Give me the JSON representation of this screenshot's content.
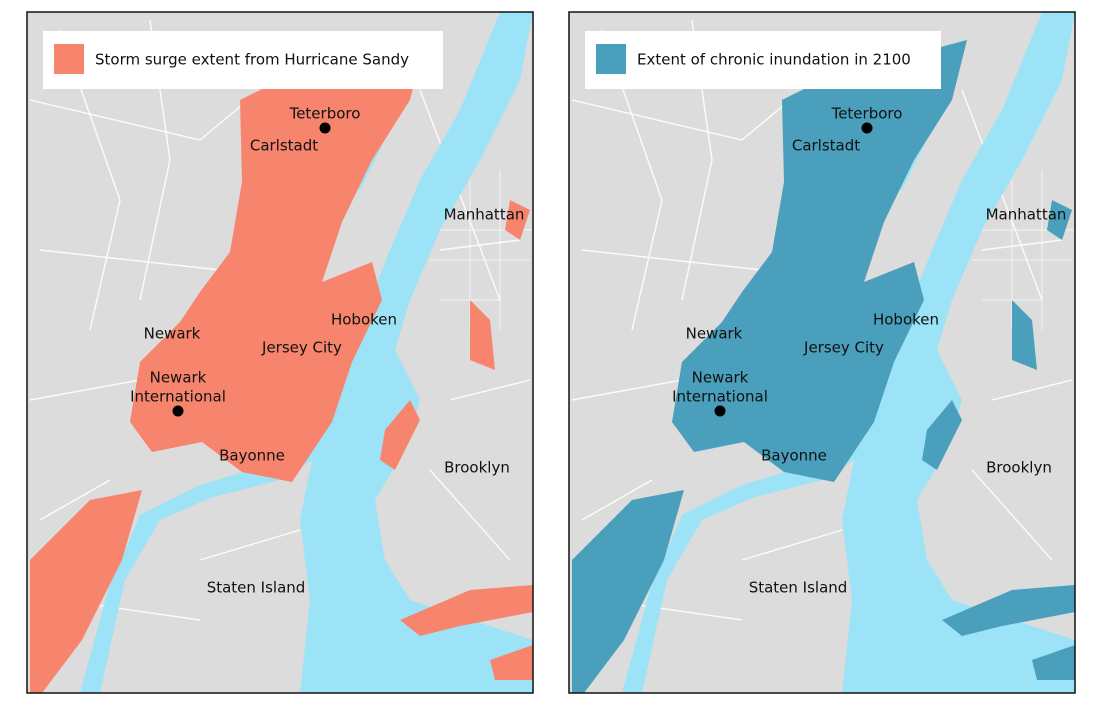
{
  "panels": [
    {
      "legend": "Storm surge extent from Hurricane Sandy",
      "color": "#f7846c",
      "places": [
        "Teterboro",
        "Carlstadt",
        "Manhattan",
        "Newark",
        "Hoboken",
        "Jersey City",
        "Newark",
        "International",
        "Bayonne",
        "Brooklyn",
        "Staten Island"
      ]
    },
    {
      "legend": "Extent of chronic inundation in 2100",
      "color": "#4a9fbc",
      "places": [
        "Teterboro",
        "Carlstadt",
        "Manhattan",
        "Newark",
        "Hoboken",
        "Jersey City",
        "Newark",
        "International",
        "Bayonne",
        "Brooklyn",
        "Staten Island"
      ]
    }
  ]
}
